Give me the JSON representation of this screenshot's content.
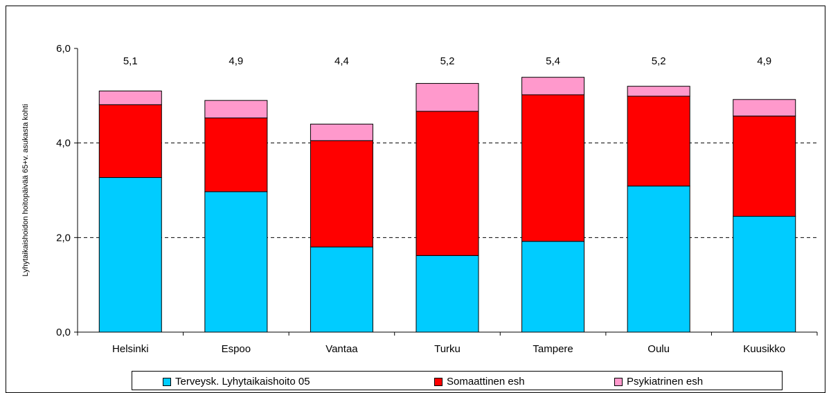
{
  "chart_data": {
    "type": "bar",
    "stacked": true,
    "categories": [
      "Helsinki",
      "Espoo",
      "Vantaa",
      "Turku",
      "Tampere",
      "Oulu",
      "Kuusikko"
    ],
    "series": [
      {
        "name": "Terveysk. Lyhytaikaishoito 05",
        "color": "#00CCFF",
        "values": [
          3.27,
          2.97,
          1.8,
          1.62,
          1.92,
          3.09,
          2.45
        ]
      },
      {
        "name": "Somaattinen esh",
        "color": "#FF0000",
        "values": [
          1.54,
          1.56,
          2.25,
          3.05,
          3.1,
          1.9,
          2.12
        ]
      },
      {
        "name": "Psykiatrinen esh",
        "color": "#FF99CC",
        "values": [
          0.29,
          0.37,
          0.35,
          0.59,
          0.37,
          0.21,
          0.35
        ]
      }
    ],
    "totals": [
      "5,1",
      "4,9",
      "4,4",
      "5,2",
      "5,4",
      "5,2",
      "4,9"
    ],
    "ylabel": "Lyhytaikaishoidon hoitopäivää 65+v. asukasta kohti",
    "xlabel": "",
    "ylim": [
      0,
      6
    ],
    "yticks": [
      0,
      2,
      4,
      6
    ],
    "ytick_labels": [
      "0,0",
      "2,0",
      "4,0",
      "6,0"
    ],
    "gridlines": "dashed at 2,0 and 4,0",
    "legend_position": "bottom"
  }
}
